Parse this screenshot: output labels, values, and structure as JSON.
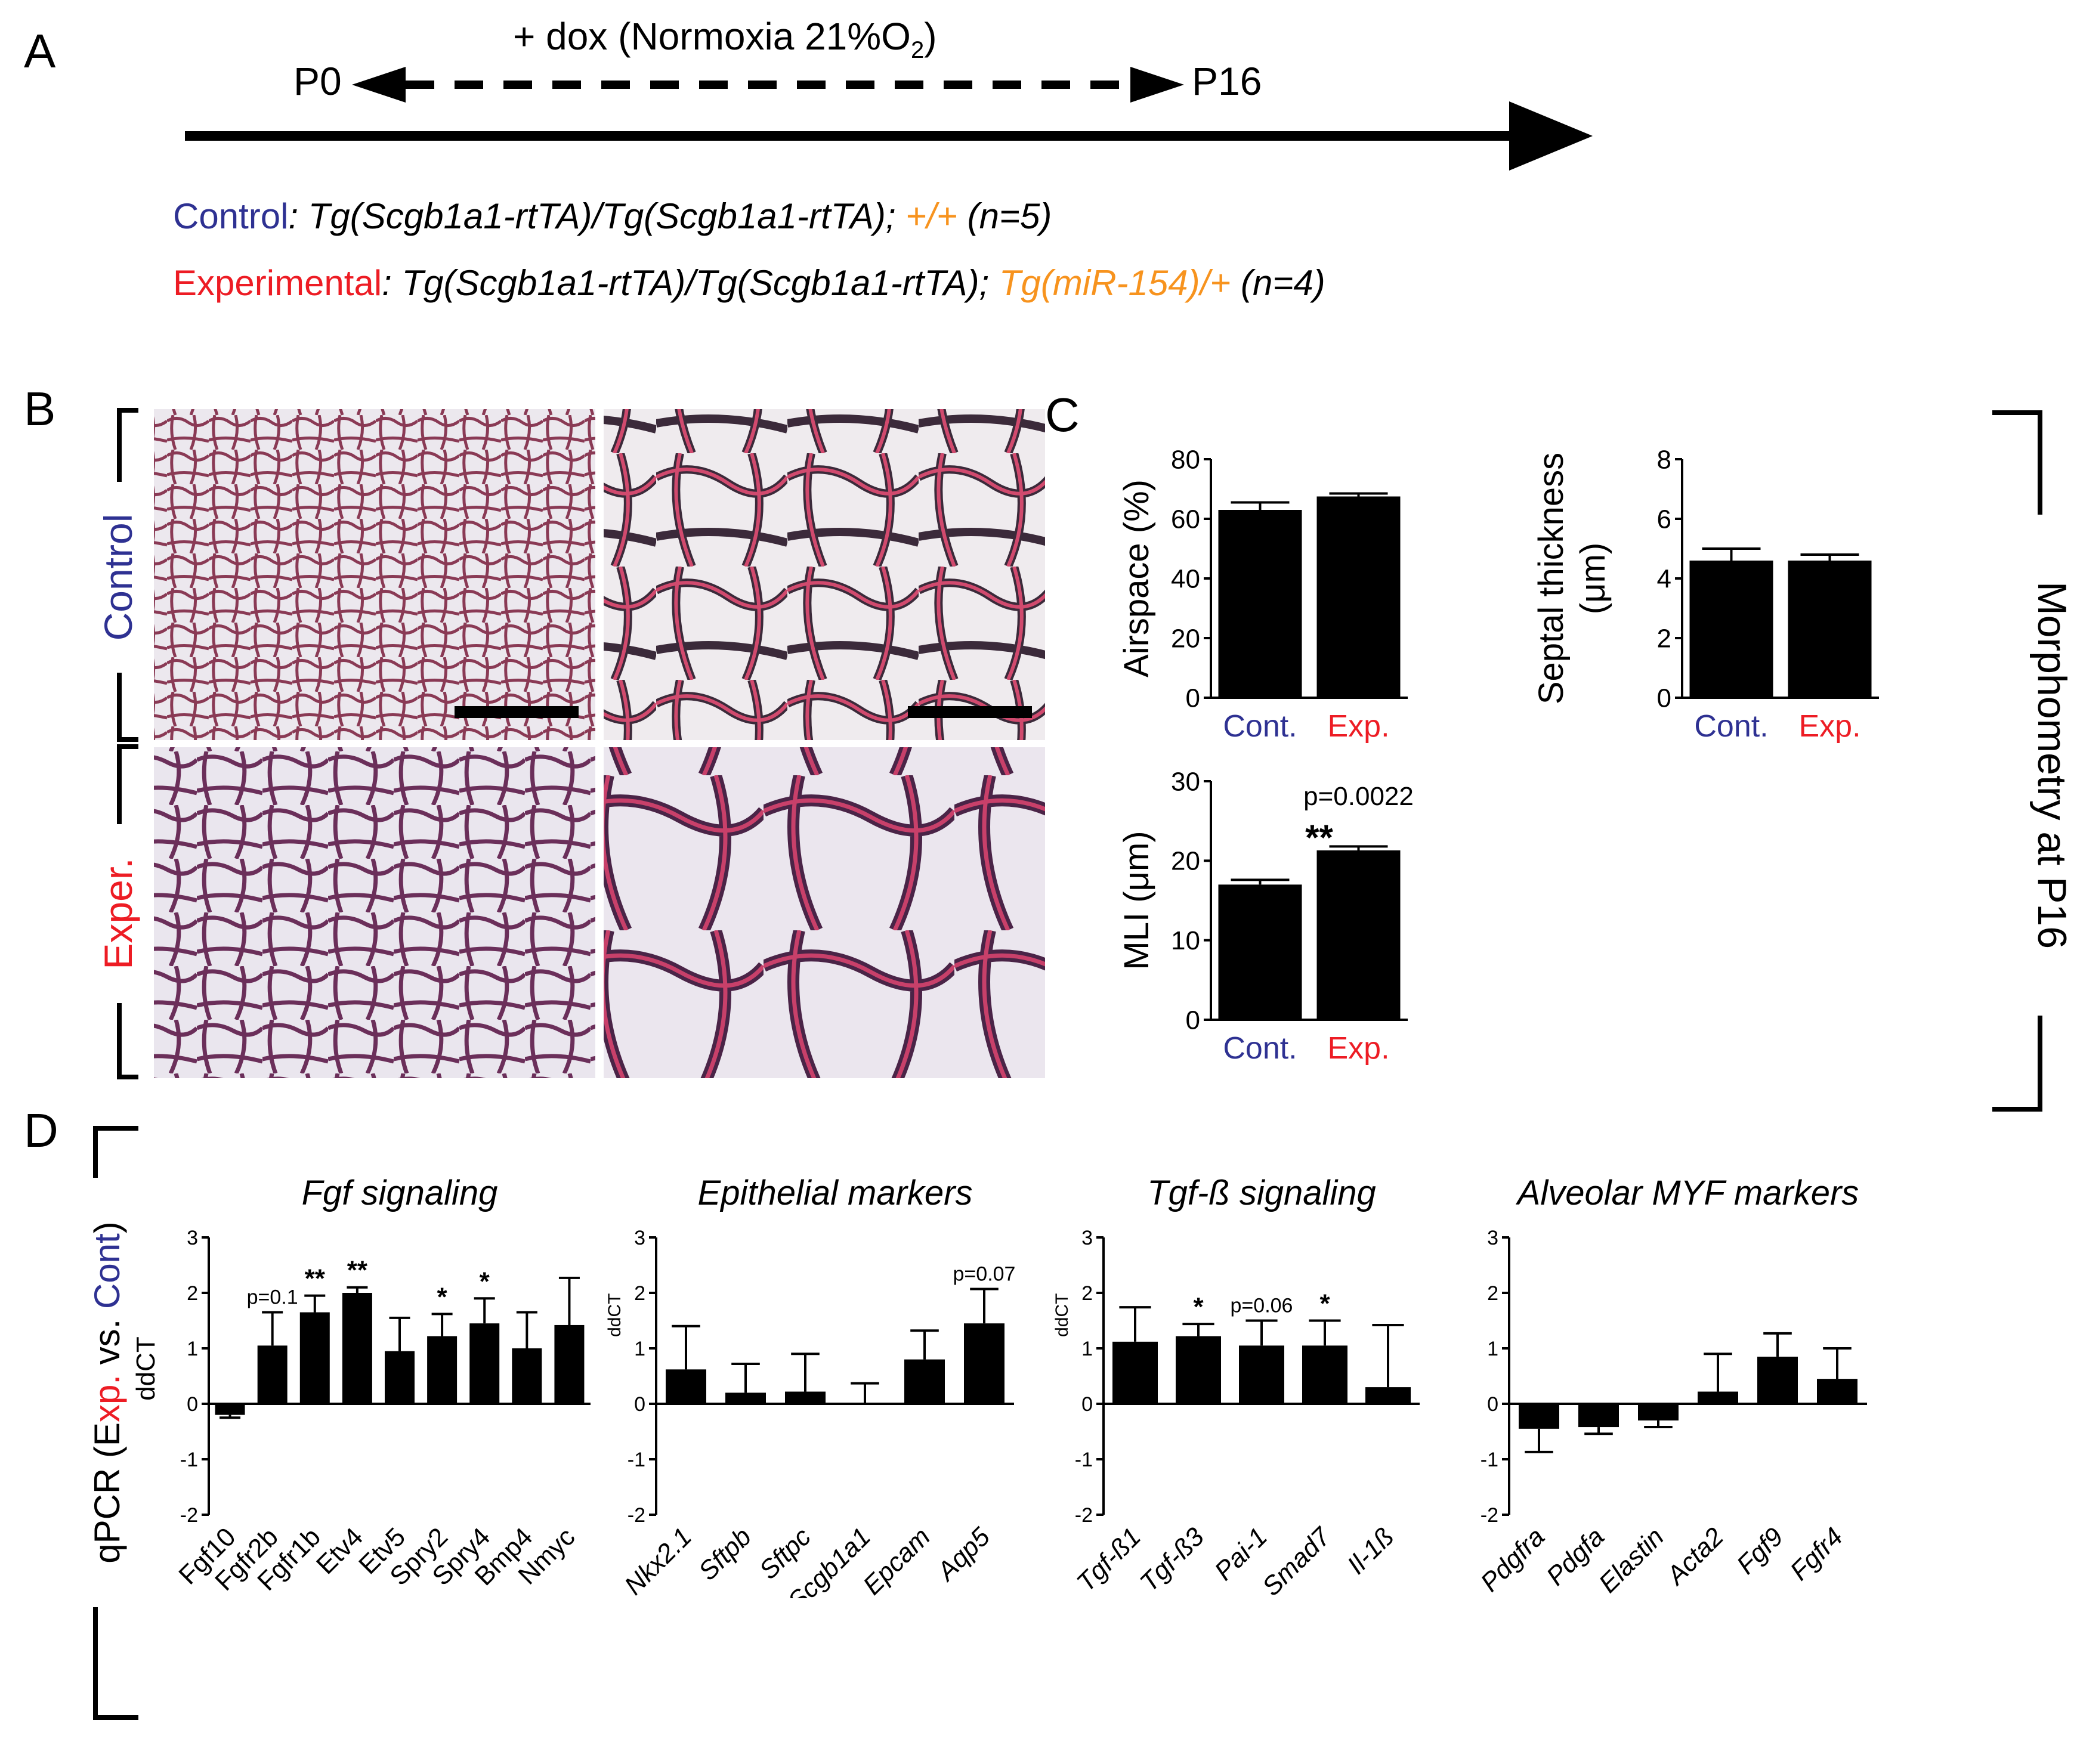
{
  "colors": {
    "control": "#2e3192",
    "experimental": "#ed1c24",
    "transgene": "#f7931e",
    "bar": "#000000"
  },
  "panelA": {
    "letter": "A",
    "treatment": "+ dox (Normoxia 21%O",
    "treatment_sub": "2",
    "treatment_end": ")",
    "start": "P0",
    "end": "P16",
    "control_label": "Control",
    "control_genotype": ": Tg(Scgb1a1-rtTA)/Tg(Scgb1a1-rtTA);",
    "control_allele": " +/+",
    "control_n": " (n=5)",
    "exp_label": "Experimental",
    "exp_genotype": ": Tg(Scgb1a1-rtTA)/Tg(Scgb1a1-rtTA);",
    "exp_allele": " Tg(miR-154)/+",
    "exp_n": " (n=4)"
  },
  "panelB": {
    "letter": "B",
    "control_label": "Control",
    "exp_label": "Exper."
  },
  "panelC": {
    "letter": "C",
    "side_label": "Morphometry at P16"
  },
  "panelD": {
    "letter": "D",
    "ylabel_prefix": "qPCR (E",
    "ylabel_exp": "xp.",
    "ylabel_mid": " vs. ",
    "ylabel_cont": "Cont",
    "ylabel_end": ")",
    "ylabel2": "ddCT"
  },
  "chart_data": [
    {
      "id": "airspace",
      "type": "bar",
      "categories": [
        "Cont.",
        "Exp."
      ],
      "values": [
        63,
        67.5
      ],
      "errors": [
        2.5,
        1
      ],
      "ylabel": "Airspace (%)",
      "ylim": [
        0,
        80
      ],
      "yticks": [
        0,
        20,
        40,
        60,
        80
      ]
    },
    {
      "id": "septal",
      "type": "bar",
      "categories": [
        "Cont.",
        "Exp."
      ],
      "values": [
        4.6,
        4.6
      ],
      "errors": [
        0.4,
        0.2
      ],
      "ylabel": "Septal thickness",
      "ylabel2": "(μm)",
      "ylim": [
        0,
        8
      ],
      "yticks": [
        0,
        2,
        4,
        6,
        8
      ]
    },
    {
      "id": "mli",
      "type": "bar",
      "categories": [
        "Cont.",
        "Exp."
      ],
      "values": [
        17,
        21.3
      ],
      "errors": [
        0.6,
        0.5
      ],
      "ylabel": "MLI (μm)",
      "ylim": [
        0,
        30
      ],
      "yticks": [
        0,
        10,
        20,
        30
      ],
      "annotation": "p=0.0022",
      "stars": "**"
    },
    {
      "id": "fgf",
      "type": "bar",
      "title": "Fgf signaling",
      "italic_ticks": false,
      "ylabel": "",
      "categories": [
        "Fgf10",
        "Fgfr2b",
        "Fgfr1b",
        "Etv4",
        "Etv5",
        "Spry2",
        "Spry4",
        "Bmp4",
        "Nmyc"
      ],
      "values": [
        -0.2,
        1.05,
        1.65,
        2.0,
        0.95,
        1.22,
        1.45,
        1.0,
        1.42
      ],
      "errors": [
        0.05,
        0.6,
        0.3,
        0.1,
        0.6,
        0.4,
        0.45,
        0.65,
        0.85
      ],
      "labels": [
        "",
        "p=0.1",
        "**",
        "**",
        "",
        "*",
        "*",
        "",
        ""
      ],
      "ylim": [
        -2,
        3
      ],
      "yticks": [
        -2,
        -1,
        0,
        1,
        2,
        3
      ]
    },
    {
      "id": "epi",
      "type": "bar",
      "title": "Epithelial markers",
      "italic_ticks": true,
      "ylabel": "ddCT",
      "categories": [
        "Nkx2.1",
        "Sftpb",
        "Sftpc",
        "Scgb1a1",
        "Epcam",
        "Aqp5"
      ],
      "values": [
        0.62,
        0.2,
        0.22,
        0.02,
        0.8,
        1.45
      ],
      "errors": [
        0.78,
        0.52,
        0.68,
        0.35,
        0.52,
        0.62
      ],
      "labels": [
        "",
        "",
        "",
        "",
        "",
        "p=0.07"
      ],
      "ylim": [
        -2,
        3
      ],
      "yticks": [
        -2,
        -1,
        0,
        1,
        2,
        3
      ]
    },
    {
      "id": "tgf",
      "type": "bar",
      "title": "Tgf-ß signaling",
      "italic_ticks": true,
      "ylabel": "ddCT",
      "categories": [
        "Tgf-ß1",
        "Tgf-ß3",
        "Pai-1",
        "Smad7",
        "Il-1ß"
      ],
      "values": [
        1.12,
        1.22,
        1.05,
        1.05,
        0.3
      ],
      "errors": [
        0.62,
        0.22,
        0.45,
        0.45,
        1.12
      ],
      "labels": [
        "",
        "*",
        "p=0.06",
        "*",
        ""
      ],
      "ylim": [
        -2,
        3
      ],
      "yticks": [
        -2,
        -1,
        0,
        1,
        2,
        3
      ]
    },
    {
      "id": "myf",
      "type": "bar",
      "title": "Alveolar MYF markers",
      "italic_ticks": true,
      "ylabel": "",
      "categories": [
        "Pdgfra",
        "Pdgfa",
        "Elastin",
        "Acta2",
        "Fgf9",
        "Fgfr4"
      ],
      "values": [
        -0.45,
        -0.42,
        -0.3,
        0.22,
        0.85,
        0.45
      ],
      "errors": [
        0.42,
        0.12,
        0.12,
        0.68,
        0.42,
        0.55
      ],
      "labels": [
        "",
        "",
        "",
        "",
        "",
        ""
      ],
      "ylim": [
        -2,
        3
      ],
      "yticks": [
        -2,
        -1,
        0,
        1,
        2,
        3
      ]
    }
  ]
}
